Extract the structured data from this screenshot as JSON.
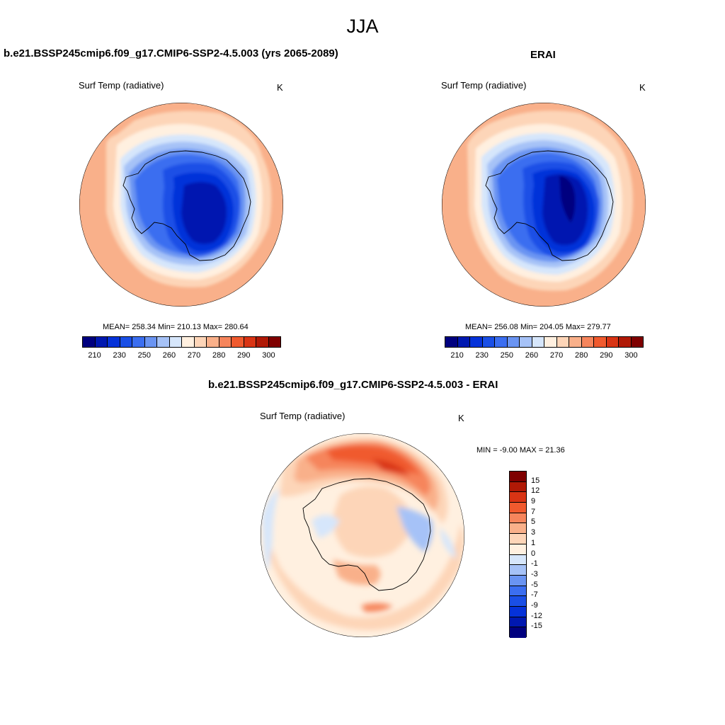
{
  "figure_title": "JJA",
  "colors": {
    "abs_scale": [
      "#00007f",
      "#0018b0",
      "#0532d9",
      "#1a4fe6",
      "#3b6ef0",
      "#6a94f2",
      "#a6c2f7",
      "#d6e6fb",
      "#fff0e0",
      "#fdd5b8",
      "#f9b08a",
      "#f6855c",
      "#f05a2e",
      "#d93414",
      "#b01906",
      "#7f0000"
    ],
    "diff_scale": [
      "#7f0000",
      "#b01906",
      "#d93414",
      "#f05a2e",
      "#f6855c",
      "#f9b08a",
      "#fdd5b8",
      "#fff0e0",
      "#d6e6fb",
      "#a6c2f7",
      "#6a94f2",
      "#3b6ef0",
      "#1a4fe6",
      "#0532d9",
      "#0018b0",
      "#00007f"
    ],
    "coastline": "#000000"
  },
  "panels": [
    {
      "title": "b.e21.BSSP245cmip6.f09_g17.CMIP6-SSP2-4.5.003 (yrs 2065-2089)",
      "variable": "Surf Temp (radiative)",
      "units": "K",
      "stats": "MEAN= 258.34  Min= 210.13  Max= 280.64",
      "colorbar_ticks": [
        "210",
        "230",
        "250",
        "260",
        "270",
        "280",
        "290",
        "300"
      ]
    },
    {
      "title": "ERAI",
      "variable": "Surf Temp (radiative)",
      "units": "K",
      "stats": "MEAN= 256.08  Min= 204.05  Max= 279.77",
      "colorbar_ticks": [
        "210",
        "230",
        "250",
        "260",
        "270",
        "280",
        "290",
        "300"
      ]
    },
    {
      "title": "b.e21.BSSP245cmip6.f09_g17.CMIP6-SSP2-4.5.003 - ERAI",
      "variable": "Surf Temp (radiative)",
      "units": "K",
      "stats": "MIN =  -9.00 MAX =  21.36",
      "colorbar_labels": [
        "15",
        "12",
        "9",
        "7",
        "5",
        "3",
        "1",
        "0",
        "-1",
        "-3",
        "-5",
        "-7",
        "-9",
        "-12",
        "-15"
      ]
    }
  ]
}
